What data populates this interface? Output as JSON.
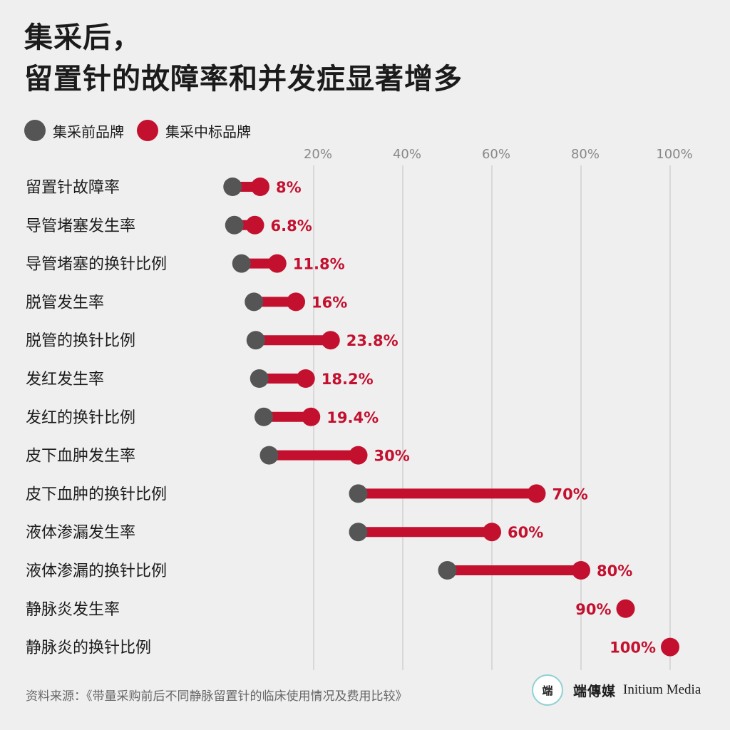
{
  "title": {
    "line1": "集采后，",
    "line2": "留置针的故障率和并发症显著增多"
  },
  "legend": {
    "before_label": "集采前品牌",
    "after_label": "集采中标品牌"
  },
  "colors": {
    "before": "#555555",
    "after": "#c4102f",
    "grid": "#c8c8c8",
    "tick_text": "#888888"
  },
  "chart_data": {
    "type": "dumbbell",
    "xlim": [
      0,
      100
    ],
    "grid": true,
    "x_ticks": [
      "20%",
      "40%",
      "60%",
      "80%",
      "100%"
    ],
    "x_tick_values": [
      20,
      40,
      60,
      80,
      100
    ],
    "series": [
      {
        "name": "集采前品牌",
        "key": "before"
      },
      {
        "name": "集采中标品牌",
        "key": "after"
      }
    ],
    "rows": [
      {
        "category": "留置针故障率",
        "before": 1.8,
        "after": 8,
        "label": "8%"
      },
      {
        "category": "导管堵塞发生率",
        "before": 2.2,
        "after": 6.8,
        "label": "6.8%"
      },
      {
        "category": "导管堵塞的换针比例",
        "before": 3.8,
        "after": 11.8,
        "label": "11.8%"
      },
      {
        "category": "脱管发生率",
        "before": 6.6,
        "after": 16,
        "label": "16%"
      },
      {
        "category": "脱管的换针比例",
        "before": 7.0,
        "after": 23.8,
        "label": "23.8%"
      },
      {
        "category": "发红发生率",
        "before": 7.8,
        "after": 18.2,
        "label": "18.2%"
      },
      {
        "category": "发红的换针比例",
        "before": 8.8,
        "after": 19.4,
        "label": "19.4%"
      },
      {
        "category": "皮下血肿发生率",
        "before": 10,
        "after": 30,
        "label": "30%"
      },
      {
        "category": "皮下血肿的换针比例",
        "before": 30,
        "after": 70,
        "label": "70%"
      },
      {
        "category": "液体渗漏发生率",
        "before": 30,
        "after": 60,
        "label": "60%"
      },
      {
        "category": "液体渗漏的换针比例",
        "before": 50,
        "after": 80,
        "label": "80%"
      },
      {
        "category": "静脉炎发生率",
        "before": null,
        "after": 90,
        "label": "90%"
      },
      {
        "category": "静脉炎的换针比例",
        "before": null,
        "after": 100,
        "label": "100%"
      }
    ]
  },
  "footer": {
    "source": "资料来源：《带量采购前后不同静脉留置针的临床使用情况及费用比较》",
    "brand_logo": "端",
    "brand_cn": "端傳媒",
    "brand_en": "Initium Media"
  }
}
